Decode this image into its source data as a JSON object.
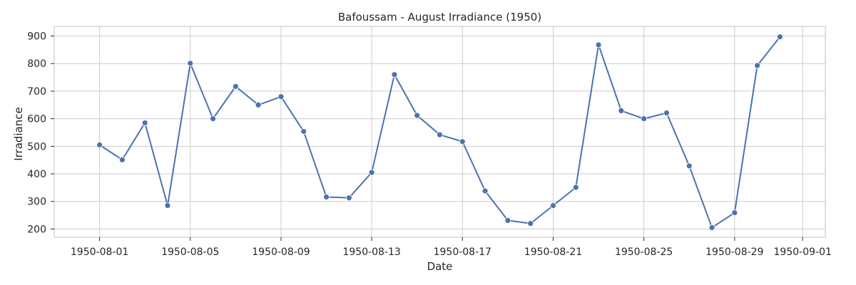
{
  "chart_data": {
    "type": "line",
    "title": "Bafoussam - August Irradiance (1950)",
    "xlabel": "Date",
    "ylabel": "Irradiance",
    "x_ticks": [
      "1950-08-01",
      "1950-08-05",
      "1950-08-09",
      "1950-08-13",
      "1950-08-17",
      "1950-08-21",
      "1950-08-25",
      "1950-08-29",
      "1950-09-01"
    ],
    "y_ticks": [
      200,
      300,
      400,
      500,
      600,
      700,
      800,
      900
    ],
    "ylim": [
      170,
      935
    ],
    "xlim": [
      "1950-07-30",
      "1950-09-02"
    ],
    "grid": true,
    "legend": "none",
    "series": [
      {
        "color": "#4c72b0",
        "marker": "circle",
        "x": [
          "1950-08-01",
          "1950-08-02",
          "1950-08-03",
          "1950-08-04",
          "1950-08-05",
          "1950-08-06",
          "1950-08-07",
          "1950-08-08",
          "1950-08-09",
          "1950-08-10",
          "1950-08-11",
          "1950-08-12",
          "1950-08-13",
          "1950-08-14",
          "1950-08-15",
          "1950-08-16",
          "1950-08-17",
          "1950-08-18",
          "1950-08-19",
          "1950-08-20",
          "1950-08-21",
          "1950-08-22",
          "1950-08-23",
          "1950-08-24",
          "1950-08-25",
          "1950-08-26",
          "1950-08-27",
          "1950-08-28",
          "1950-08-29",
          "1950-08-30",
          "1950-08-31"
        ],
        "values": [
          505,
          451,
          585,
          285,
          801,
          600,
          717,
          650,
          680,
          554,
          316,
          313,
          405,
          760,
          612,
          542,
          517,
          338,
          231,
          220,
          285,
          351,
          868,
          629,
          600,
          621,
          429,
          205,
          259,
          793,
          897
        ]
      }
    ]
  }
}
